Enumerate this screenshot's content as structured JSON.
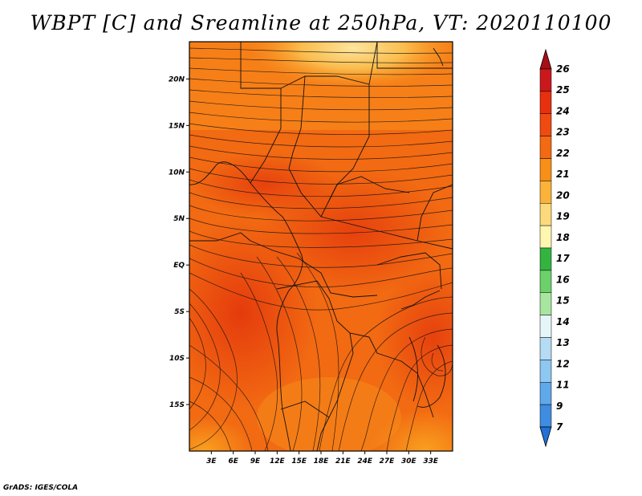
{
  "title": "WBPT [C] and Sreamline at 250hPa, VT: 2020110100",
  "credit": "GrADS: IGES/COLA",
  "map": {
    "lon_range": [
      0,
      36
    ],
    "lat_range": [
      -20,
      24
    ],
    "lon_ticks": [
      "3E",
      "6E",
      "9E",
      "12E",
      "15E",
      "18E",
      "21E",
      "24E",
      "27E",
      "30E",
      "33E"
    ],
    "lat_ticks": [
      "20N",
      "15N",
      "10N",
      "5N",
      "EQ",
      "5S",
      "10S",
      "15S"
    ]
  },
  "colorbar": {
    "labels": [
      "26",
      "25",
      "24",
      "23",
      "22",
      "21",
      "20",
      "19",
      "18",
      "17",
      "16",
      "15",
      "14",
      "13",
      "12",
      "11",
      "9",
      "7"
    ],
    "colors": [
      "#a50f15",
      "#cb181d",
      "#e8300e",
      "#f04a10",
      "#f36a12",
      "#f88f16",
      "#fbb238",
      "#fcd97a",
      "#fff6b0",
      "#33b340",
      "#6cd16a",
      "#a8e6a0",
      "#e6f6f8",
      "#b6dcf5",
      "#8ec7f0",
      "#5fa8ea",
      "#3f8ce0",
      "#2271d8"
    ]
  }
}
